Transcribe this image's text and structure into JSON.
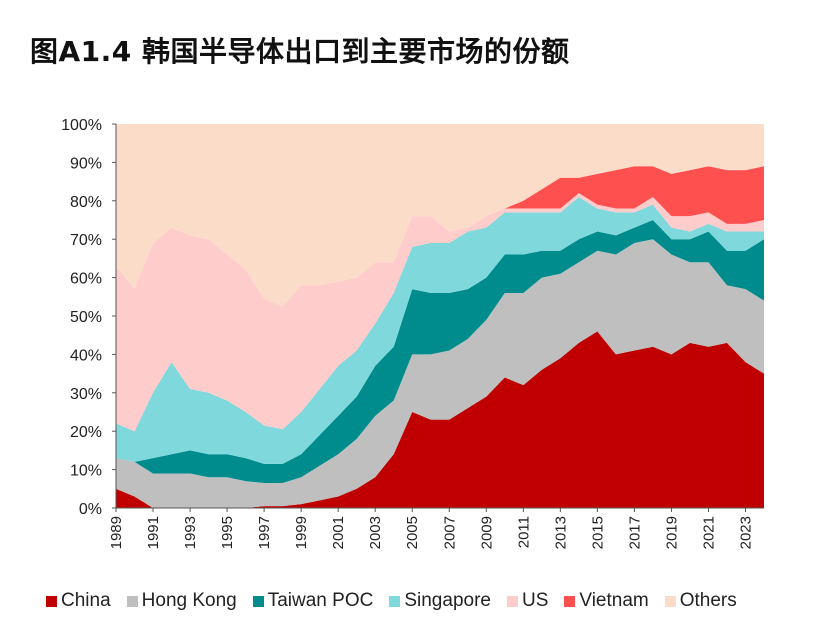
{
  "title": "图A1.4 韩国半导体出口到主要市场的份额",
  "chart_data": {
    "type": "area",
    "stacked": true,
    "x": [
      1989,
      1990,
      1991,
      1992,
      1993,
      1994,
      1995,
      1996,
      1997,
      1998,
      1999,
      2000,
      2001,
      2002,
      2003,
      2004,
      2005,
      2006,
      2007,
      2008,
      2009,
      2010,
      2011,
      2012,
      2013,
      2014,
      2015,
      2016,
      2017,
      2018,
      2019,
      2020,
      2021,
      2022,
      2023,
      2024
    ],
    "x_tick_labels": [
      "1989",
      "1991",
      "1993",
      "1995",
      "1997",
      "1999",
      "2001",
      "2003",
      "2005",
      "2007",
      "2009",
      "2011",
      "2013",
      "2015",
      "2017",
      "2019",
      "2021",
      "2023"
    ],
    "y_tick_labels": [
      "0%",
      "10%",
      "20%",
      "30%",
      "40%",
      "50%",
      "60%",
      "70%",
      "80%",
      "90%",
      "100%"
    ],
    "ylim": [
      0,
      100
    ],
    "series": [
      {
        "name": "China",
        "color": "#c00000",
        "values": [
          5,
          3,
          0,
          0,
          0,
          0,
          0,
          0,
          0.5,
          0.5,
          1,
          2,
          3,
          5,
          8,
          14,
          25,
          23,
          23,
          26,
          29,
          34,
          32,
          36,
          39,
          43,
          46,
          40,
          41,
          42,
          40,
          43,
          42,
          43,
          38,
          35
        ]
      },
      {
        "name": "Hong Kong",
        "color": "#bfbfbf",
        "values": [
          8,
          9,
          9,
          9,
          9,
          8,
          8,
          7,
          6,
          6,
          7,
          9,
          11,
          13,
          16,
          14,
          15,
          17,
          18,
          18,
          20,
          22,
          24,
          24,
          22,
          21,
          21,
          26,
          28,
          28,
          26,
          21,
          22,
          15,
          19,
          19
        ]
      },
      {
        "name": "Taiwan POC",
        "color": "#008c8c",
        "values": [
          0,
          0,
          4,
          5,
          6,
          6,
          6,
          6,
          5,
          5,
          6,
          8,
          10,
          11,
          13,
          14,
          17,
          16,
          15,
          13,
          11,
          10,
          10,
          7,
          6,
          6,
          5,
          5,
          4,
          5,
          4,
          6,
          8,
          9,
          10,
          16
        ]
      },
      {
        "name": "Singapore",
        "color": "#7fd8dc",
        "values": [
          9,
          8,
          17,
          24,
          16,
          16,
          14,
          12,
          10,
          9,
          11,
          12,
          13,
          12,
          11,
          14,
          11,
          13,
          13,
          15,
          13,
          11,
          11,
          10,
          10,
          11,
          6,
          6,
          4,
          4,
          3,
          2,
          2,
          5,
          5,
          2
        ]
      },
      {
        "name": "US",
        "color": "#ffcccc",
        "values": [
          41,
          37,
          39,
          35,
          40,
          40,
          38,
          37,
          33,
          32,
          33,
          27,
          22,
          19,
          16,
          8,
          8,
          7,
          3,
          1,
          3,
          1,
          1,
          1,
          1,
          1,
          1,
          1,
          1,
          2,
          3,
          4,
          3,
          2,
          2,
          3
        ]
      },
      {
        "name": "Vietnam",
        "color": "#ff5050",
        "values": [
          0,
          0,
          0,
          0,
          0,
          0,
          0,
          0,
          0,
          0,
          0,
          0,
          0,
          0,
          0,
          0,
          0,
          0,
          0,
          0,
          0,
          0,
          2,
          5,
          8,
          4,
          8,
          10,
          11,
          8,
          11,
          12,
          12,
          14,
          14,
          14
        ]
      },
      {
        "name": "Others",
        "color": "#fadcc8",
        "values": [
          37,
          43,
          31,
          27,
          29,
          30,
          34,
          38,
          45.5,
          47.5,
          42,
          42,
          41,
          40,
          36,
          36,
          24,
          24,
          28,
          27,
          24,
          22,
          20,
          17,
          14,
          14,
          13,
          12,
          11,
          11,
          13,
          12,
          11,
          12,
          12,
          11
        ]
      }
    ]
  }
}
